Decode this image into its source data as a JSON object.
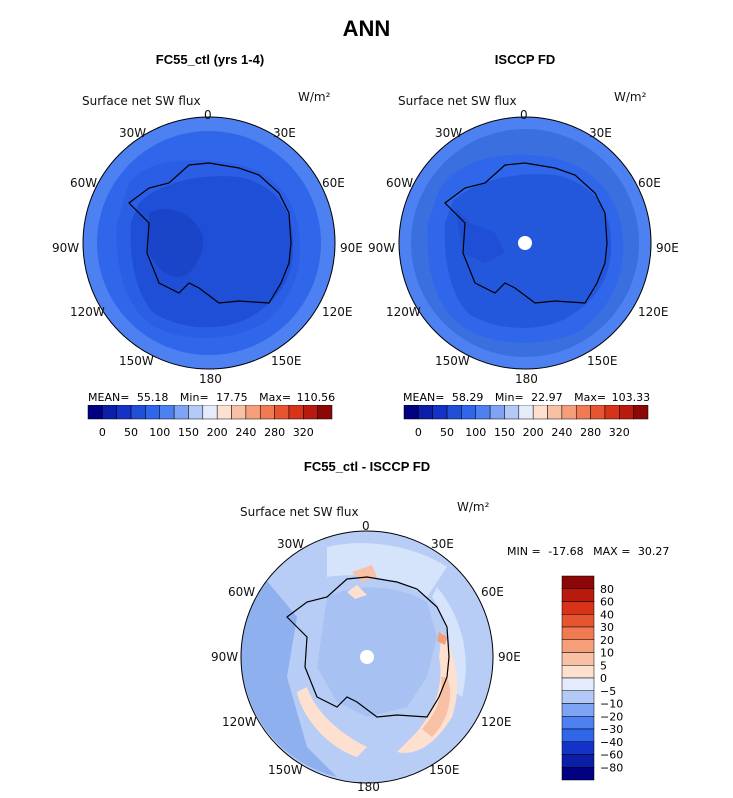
{
  "figure_title": "ANN",
  "colors": {
    "deep_blue": "#1f4fd6",
    "mid_blue": "#2f66ea",
    "light_blue": "#4d80f0",
    "ice_blue": "#3a6fe0",
    "diff_light": "#b7cdf5",
    "diff_pale": "#d5e3fb",
    "diff_mid": "#8fb0ee",
    "coast": "#000000"
  },
  "panels": [
    {
      "title": "FC55_ctl (yrs 1-4)",
      "variable": "Surface net SW flux",
      "units": "W/m²",
      "stats": {
        "mean_label": "MEAN=",
        "mean": "55.18",
        "min_label": "Min=",
        "min": "17.75",
        "max_label": "Max=",
        "max": "110.56"
      },
      "lon_labels": [
        "0",
        "30E",
        "60E",
        "90E",
        "120E",
        "150E",
        "180",
        "150W",
        "120W",
        "90W",
        "60W",
        "30W"
      ]
    },
    {
      "title": "ISCCP FD",
      "variable": "Surface net SW flux",
      "units": "W/m²",
      "stats": {
        "mean_label": "MEAN=",
        "mean": "58.29",
        "min_label": "Min=",
        "min": "22.97",
        "max_label": "Max=",
        "max": "103.33"
      },
      "lon_labels": [
        "0",
        "30E",
        "60E",
        "90E",
        "120E",
        "150E",
        "180",
        "150W",
        "120W",
        "90W",
        "60W",
        "30W"
      ]
    },
    {
      "title": "FC55_ctl - ISCCP FD",
      "variable": "Surface net SW flux",
      "units": "W/m²",
      "stats": {
        "min_label": "MIN =",
        "min": "-17.68",
        "max_label": "MAX =",
        "max": "30.27"
      },
      "lon_labels": [
        "0",
        "30E",
        "60E",
        "90E",
        "120E",
        "150E",
        "180",
        "150W",
        "120W",
        "90W",
        "60W",
        "30W"
      ]
    }
  ],
  "chart_data": [
    {
      "type": "heatmap",
      "projection": "south polar stereographic",
      "title": "FC55_ctl (yrs 1-4)",
      "variable": "Surface net SW flux",
      "units": "W/m²",
      "mean": 55.18,
      "min": 17.75,
      "max": 110.56,
      "colorbar": {
        "ticks": [
          "0",
          "50",
          "100",
          "150",
          "200",
          "240",
          "280",
          "320"
        ],
        "colors": [
          "#000080",
          "#0a1ea8",
          "#1532c8",
          "#1f4fd6",
          "#2f66ea",
          "#4d80f0",
          "#7fa4f3",
          "#b3c9f6",
          "#e4ecfb",
          "#fde0cf",
          "#f8c0a5",
          "#f59e7a",
          "#f07a52",
          "#e75530",
          "#d63318",
          "#b81a0d",
          "#8c0707"
        ]
      }
    },
    {
      "type": "heatmap",
      "projection": "south polar stereographic",
      "title": "ISCCP FD",
      "variable": "Surface net SW flux",
      "units": "W/m²",
      "mean": 58.29,
      "min": 22.97,
      "max": 103.33,
      "colorbar": {
        "ticks": [
          "0",
          "50",
          "100",
          "150",
          "200",
          "240",
          "280",
          "320"
        ],
        "colors": [
          "#000080",
          "#0a1ea8",
          "#1532c8",
          "#1f4fd6",
          "#2f66ea",
          "#4d80f0",
          "#7fa4f3",
          "#b3c9f6",
          "#e4ecfb",
          "#fde0cf",
          "#f8c0a5",
          "#f59e7a",
          "#f07a52",
          "#e75530",
          "#d63318",
          "#b81a0d",
          "#8c0707"
        ]
      }
    },
    {
      "type": "heatmap",
      "projection": "south polar stereographic",
      "title": "FC55_ctl - ISCCP FD",
      "variable": "Surface net SW flux",
      "units": "W/m²",
      "min": -17.68,
      "max": 30.27,
      "colorbar": {
        "orientation": "vertical",
        "ticks": [
          "80",
          "60",
          "40",
          "30",
          "20",
          "10",
          "5",
          "0",
          "−5",
          "−10",
          "−20",
          "−30",
          "−40",
          "−60",
          "−80"
        ],
        "colors": [
          "#8c0707",
          "#b81a0d",
          "#d63318",
          "#e75530",
          "#f07a52",
          "#f59e7a",
          "#f8c0a5",
          "#fde0cf",
          "#e4ecfb",
          "#b3c9f6",
          "#7fa4f3",
          "#4d80f0",
          "#2f66ea",
          "#1532c8",
          "#0a1ea8",
          "#000080"
        ]
      }
    }
  ]
}
